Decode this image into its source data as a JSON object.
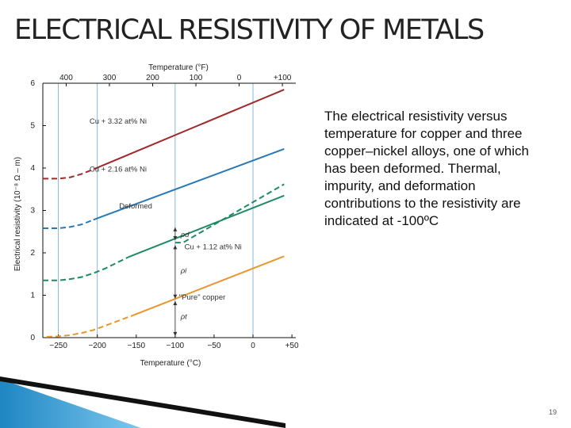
{
  "slide": {
    "title": "ELECTRICAL RESISTIVITY OF METALS",
    "caption": "The electrical resistivity versus temperature for copper and three copper–nickel alloys, one of which has been deformed. Thermal, impurity, and deformation contributions to the resistivity are indicated at -100ºC",
    "page_number": "19"
  },
  "colors": {
    "cu332": "#a02a2a",
    "cu216": "#2878b4",
    "cu112": "#1e8a64",
    "pure": "#e8962e",
    "axis": "#111111",
    "grid": "#6aa6d0",
    "accent": "#2a9fd6"
  },
  "chart_data": {
    "type": "line",
    "title": "",
    "xlabel": "Temperature (°C)",
    "ylabel": "Electrical resistivity (10⁻⁸ Ω – m)",
    "x2label": "Temperature (°F)",
    "xlim": [
      -270,
      55
    ],
    "ylim": [
      0,
      6
    ],
    "xticks": [
      -250,
      -200,
      -150,
      -100,
      -50,
      0,
      50
    ],
    "xtick_labels": [
      "−250",
      "−200",
      "−150",
      "−100",
      "−50",
      "0",
      "+50"
    ],
    "x2ticks": [
      {
        "f": -400,
        "label": "400"
      },
      {
        "f": -300,
        "label": "300"
      },
      {
        "f": -200,
        "label": "200"
      },
      {
        "f": -100,
        "label": "100"
      },
      {
        "f": 0,
        "label": "0"
      },
      {
        "f": 100,
        "label": "+100"
      }
    ],
    "yticks": [
      0,
      1,
      2,
      3,
      4,
      5,
      6
    ],
    "grid_x": [
      -250,
      -200,
      -100,
      0
    ],
    "series": [
      {
        "name": "Cu + 3.32 at% Ni",
        "color_key": "cu332",
        "dashed_x": [
          -270,
          -250,
          -235,
          -220,
          -205
        ],
        "dashed_y": [
          3.75,
          3.75,
          3.78,
          3.86,
          3.97
        ],
        "solid_x": [
          -205,
          40
        ],
        "solid_y": [
          3.97,
          5.85
        ],
        "label_x": -210,
        "label_y": 5.05
      },
      {
        "name": "Cu + 2.16 at% Ni",
        "color_key": "cu216",
        "dashed_x": [
          -270,
          -250,
          -235,
          -220,
          -205
        ],
        "dashed_y": [
          2.58,
          2.58,
          2.61,
          2.67,
          2.78
        ],
        "solid_x": [
          -205,
          40
        ],
        "solid_y": [
          2.78,
          4.45
        ],
        "label_x": -210,
        "label_y": 3.92
      },
      {
        "name": "Deformed",
        "color_key": "cu112",
        "dashed_x": [
          -100,
          -90,
          40
        ],
        "dashed_y": [
          2.24,
          2.24,
          3.62
        ],
        "solid_x": [],
        "solid_y": [],
        "label_x": -172,
        "label_y": 3.05
      },
      {
        "name": "Cu + 1.12 at% Ni",
        "color_key": "cu112",
        "dashed_x": [
          -270,
          -250,
          -235,
          -220,
          -205,
          -190,
          -160
        ],
        "dashed_y": [
          1.35,
          1.35,
          1.38,
          1.43,
          1.52,
          1.63,
          1.9
        ],
        "solid_x": [
          -160,
          40
        ],
        "solid_y": [
          1.9,
          3.35
        ],
        "label_x": -88,
        "label_y": 2.08
      },
      {
        "name": "\"Pure\" copper",
        "color_key": "pure",
        "dashed_x": [
          -265,
          -250,
          -235,
          -220,
          -205,
          -190,
          -170,
          -155
        ],
        "dashed_y": [
          0.02,
          0.03,
          0.06,
          0.11,
          0.18,
          0.28,
          0.42,
          0.52
        ],
        "solid_x": [
          -155,
          40
        ],
        "solid_y": [
          0.52,
          1.92
        ],
        "label_x": -95,
        "label_y": 0.9
      }
    ],
    "annotations": [
      {
        "label": "ρd",
        "x": -93,
        "y": 2.43
      },
      {
        "label": "ρi",
        "x": -93,
        "y": 1.58
      },
      {
        "label": "ρt",
        "x": -93,
        "y": 0.5
      }
    ],
    "annotation_positions": [
      {
        "x": -100,
        "y0": 2.3,
        "y1": 2.6
      },
      {
        "x": -100,
        "y0": 0.92,
        "y1": 2.18
      },
      {
        "x": -100,
        "y0": 0.04,
        "y1": 0.86
      }
    ]
  }
}
